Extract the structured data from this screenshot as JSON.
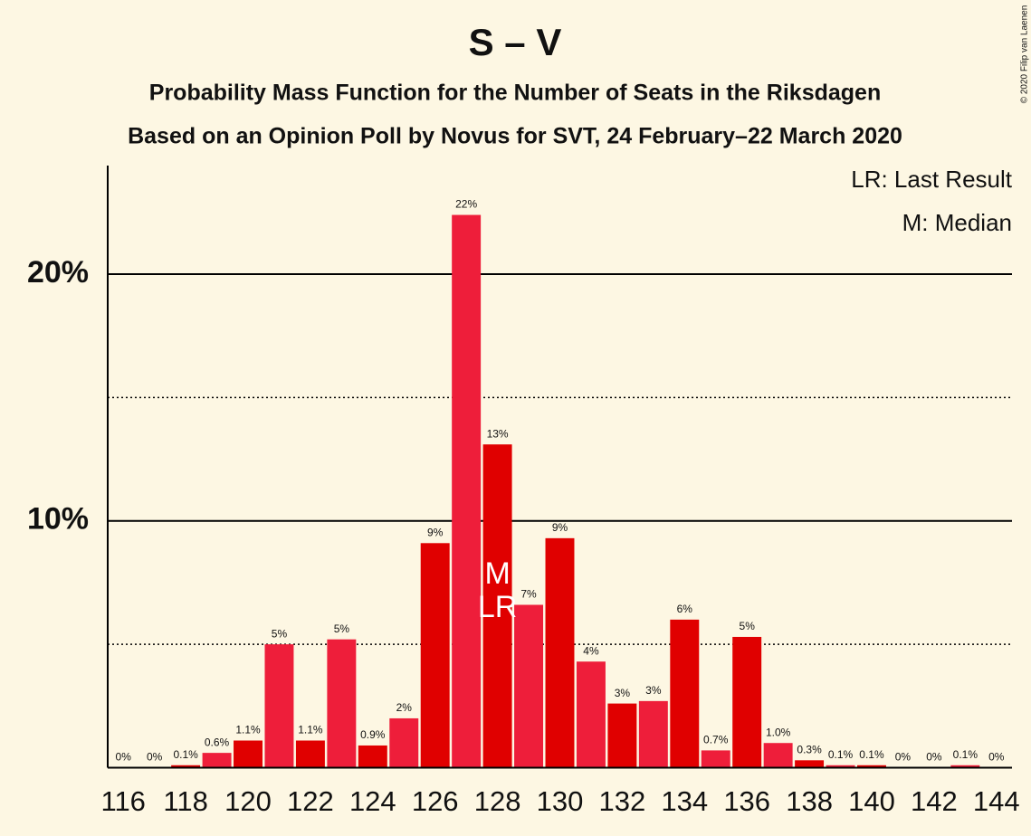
{
  "chart_data": {
    "type": "bar",
    "title": "S – V",
    "subtitle": [
      "Probability Mass Function for the Number of Seats in the Riksdagen",
      "Based on an Opinion Poll by Novus for SVT, 24 February–22 March 2020"
    ],
    "copyright": "© 2020 Filip van Laenen",
    "legend": [
      "LR: Last Result",
      "M: Median"
    ],
    "x": [
      116,
      117,
      118,
      119,
      120,
      121,
      122,
      123,
      124,
      125,
      126,
      127,
      128,
      129,
      130,
      131,
      132,
      133,
      134,
      135,
      136,
      137,
      138,
      139,
      140,
      141,
      142,
      143,
      144
    ],
    "values": [
      0,
      0,
      0.1,
      0.6,
      1.1,
      5.0,
      1.1,
      5.2,
      0.9,
      2.0,
      9.1,
      22.4,
      13.1,
      6.6,
      9.3,
      4.3,
      2.6,
      2.7,
      6.0,
      0.7,
      5.3,
      1.0,
      0.3,
      0.1,
      0.1,
      0,
      0,
      0.1,
      0
    ],
    "value_labels": [
      "0%",
      "0%",
      "0.1%",
      "0.6%",
      "1.1%",
      "5%",
      "1.1%",
      "5%",
      "0.9%",
      "2%",
      "9%",
      "22%",
      "13%",
      "7%",
      "9%",
      "4%",
      "3%",
      "3%",
      "6%",
      "0.7%",
      "5%",
      "1.0%",
      "0.3%",
      "0.1%",
      "0.1%",
      "0%",
      "0%",
      "0.1%",
      "0%"
    ],
    "colors": [
      "#e00000",
      "#ee1e3a"
    ],
    "median": {
      "x": 128,
      "label": "M"
    },
    "last_result": {
      "x": 128,
      "label": "LR"
    },
    "xlim": [
      115.5,
      144.5
    ],
    "xticks": [
      116,
      118,
      120,
      122,
      124,
      126,
      128,
      130,
      132,
      134,
      136,
      138,
      140,
      142,
      144
    ],
    "ylim": [
      0,
      24.4
    ],
    "yticks": [
      {
        "value": 10,
        "label": "10%"
      },
      {
        "value": 20,
        "label": "20%"
      }
    ],
    "minor_yticks": [
      5,
      15
    ],
    "grid": true
  }
}
